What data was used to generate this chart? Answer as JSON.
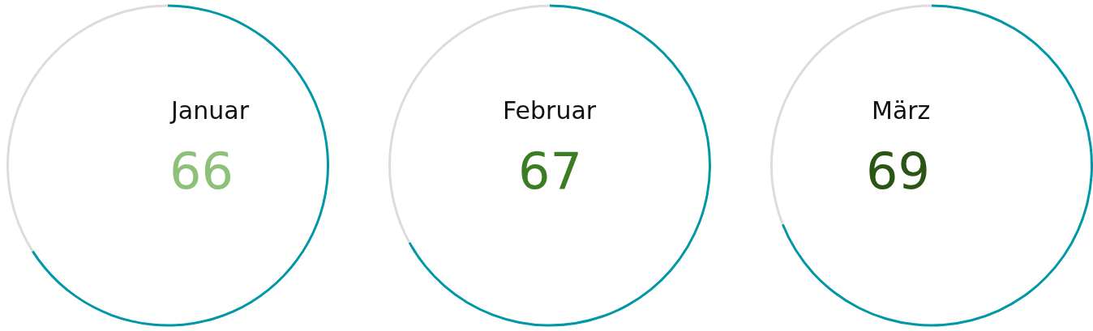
{
  "chart_data": [
    {
      "type": "donut",
      "title": "Januar",
      "categories": [
        null,
        null
      ],
      "values": [
        66,
        34
      ],
      "colors": [
        "#0097a7",
        "#dcdcdc"
      ],
      "value_labels": [
        "66",
        null
      ]
    },
    {
      "type": "donut",
      "title": "Februar",
      "categories": [
        null,
        null
      ],
      "values": [
        67,
        33
      ],
      "colors": [
        "#0097a7",
        "#dcdcdc"
      ],
      "value_labels": [
        "67",
        null
      ]
    },
    {
      "type": "donut",
      "title": "März",
      "categories": [
        null,
        null
      ],
      "values": [
        69,
        31
      ],
      "colors": [
        "#0097a7",
        "#dcdcdc"
      ],
      "value_labels": [
        "69",
        null
      ]
    }
  ]
}
